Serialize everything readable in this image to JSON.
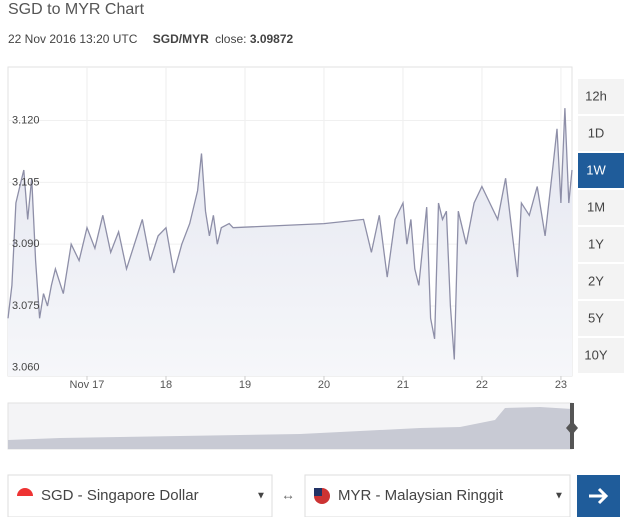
{
  "header": {
    "title": "SGD to MYR Chart",
    "date": "22 Nov 2016 13:20 UTC",
    "pair": "SGD/MYR",
    "close_label": "close:",
    "close_value": "3.09872"
  },
  "ranges": [
    "12h",
    "1D",
    "1W",
    "1M",
    "1Y",
    "2Y",
    "5Y",
    "10Y"
  ],
  "active_range": "1W",
  "converter": {
    "from": "SGD - Singapore Dollar",
    "swap": "↔",
    "to": "MYR - Malaysian Ringgit"
  },
  "chart_data": {
    "type": "line",
    "color": "#8e8fa8",
    "grid": true,
    "xlim": [
      16.0,
      23.14
    ],
    "ylim": [
      3.058,
      3.133
    ],
    "xticks": [
      {
        "value": 17,
        "label": "Nov 17"
      },
      18,
      19,
      20,
      21,
      22,
      23
    ],
    "yticks": [
      {
        "value": 3.06,
        "label": "3.060"
      },
      {
        "value": 3.075,
        "label": "3.075"
      },
      {
        "value": 3.09,
        "label": "3.090"
      },
      {
        "value": 3.105,
        "label": "3.105"
      },
      {
        "value": 3.12,
        "label": "3.120"
      }
    ],
    "x": [
      16.0,
      16.05,
      16.1,
      16.15,
      16.2,
      16.25,
      16.3,
      16.35,
      16.4,
      16.45,
      16.5,
      16.55,
      16.6,
      16.7,
      16.8,
      16.9,
      17.0,
      17.1,
      17.2,
      17.3,
      17.4,
      17.5,
      17.6,
      17.7,
      17.8,
      17.9,
      18.0,
      18.1,
      18.2,
      18.3,
      18.4,
      18.45,
      18.5,
      18.55,
      18.6,
      18.65,
      18.7,
      18.8,
      18.85,
      20.0,
      20.5,
      20.6,
      20.7,
      20.8,
      20.9,
      21.0,
      21.05,
      21.1,
      21.15,
      21.2,
      21.3,
      21.35,
      21.4,
      21.45,
      21.5,
      21.55,
      21.6,
      21.65,
      21.7,
      21.8,
      21.9,
      22.0,
      22.1,
      22.2,
      22.3,
      22.4,
      22.45,
      22.5,
      22.6,
      22.7,
      22.8,
      22.9,
      22.95,
      23.0,
      23.05,
      23.1,
      23.14
    ],
    "values": [
      3.072,
      3.08,
      3.1,
      3.104,
      3.108,
      3.096,
      3.106,
      3.086,
      3.072,
      3.078,
      3.075,
      3.08,
      3.084,
      3.078,
      3.09,
      3.086,
      3.094,
      3.089,
      3.097,
      3.088,
      3.093,
      3.084,
      3.09,
      3.096,
      3.086,
      3.092,
      3.094,
      3.083,
      3.09,
      3.095,
      3.103,
      3.112,
      3.098,
      3.092,
      3.097,
      3.09,
      3.094,
      3.095,
      3.094,
      3.095,
      3.096,
      3.088,
      3.097,
      3.082,
      3.096,
      3.1,
      3.09,
      3.096,
      3.084,
      3.08,
      3.099,
      3.072,
      3.067,
      3.1,
      3.096,
      3.098,
      3.075,
      3.062,
      3.098,
      3.09,
      3.1,
      3.104,
      3.1,
      3.096,
      3.106,
      3.09,
      3.082,
      3.1,
      3.097,
      3.104,
      3.092,
      3.109,
      3.118,
      3.1,
      3.123,
      3.1,
      3.108
    ]
  }
}
